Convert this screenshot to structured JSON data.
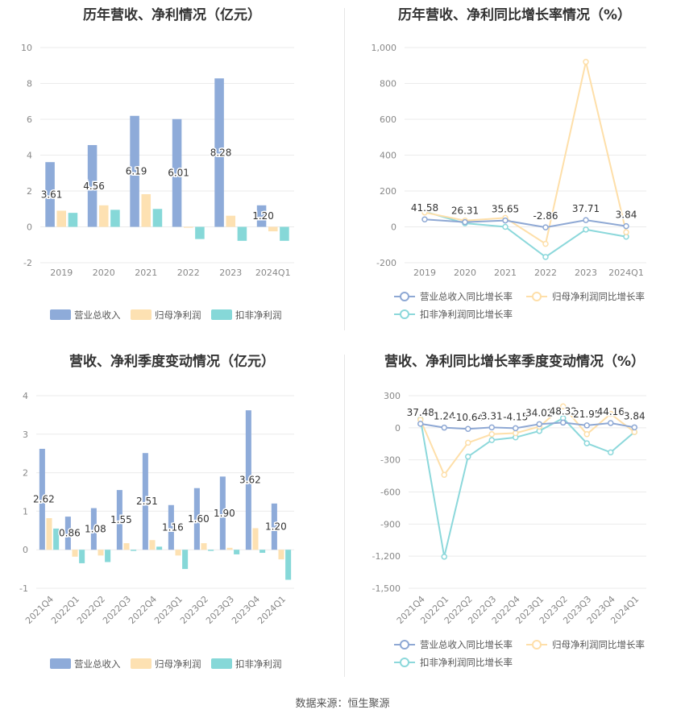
{
  "source": "数据来源：恒生聚源",
  "colors": {
    "revenue": "#8eabd9",
    "netprofit": "#fde1b2",
    "deducted": "#86d8d8",
    "rev_line": "#8ea8d4",
    "np_line": "#fedfa9",
    "dd_line": "#8cd8db"
  },
  "chart_data": [
    {
      "type": "bar",
      "title": "历年营收、净利情况（亿元）",
      "categories": [
        "2019",
        "2020",
        "2021",
        "2022",
        "2023",
        "2024Q1"
      ],
      "ylim": [
        -2,
        10
      ],
      "yticks": [
        -2,
        0,
        2,
        4,
        6,
        8,
        10
      ],
      "ytick_labels": [
        "-2",
        "0",
        "2",
        "4",
        "6",
        "8",
        "10"
      ],
      "grid": true,
      "legend": "bottom",
      "series": [
        {
          "name": "营业总收入",
          "values": [
            3.61,
            4.56,
            6.19,
            6.01,
            8.28,
            1.2
          ],
          "labels": [
            "3.61",
            "4.56",
            "6.19",
            "6.01",
            "8.28",
            "1.20"
          ]
        },
        {
          "name": "归母净利润",
          "values": [
            0.9,
            1.2,
            1.82,
            -0.05,
            0.62,
            -0.25
          ]
        },
        {
          "name": "扣非净利润",
          "values": [
            0.78,
            0.95,
            1.0,
            -0.68,
            -0.78,
            -0.78
          ]
        }
      ]
    },
    {
      "type": "line",
      "title": "历年营收、净利同比增长率情况（%）",
      "categories": [
        "2019",
        "2020",
        "2021",
        "2022",
        "2023",
        "2024Q1"
      ],
      "ylim": [
        -200,
        1000
      ],
      "yticks": [
        -200,
        0,
        200,
        400,
        600,
        800,
        1000
      ],
      "ytick_labels": [
        "-200",
        "0",
        "200",
        "400",
        "600",
        "800",
        "1,000"
      ],
      "grid": true,
      "legend": "bottom",
      "series": [
        {
          "name": "营业总收入同比增长率",
          "values": [
            41.58,
            26.31,
            35.65,
            -2.86,
            37.71,
            3.84
          ],
          "labels": [
            "41.58",
            "26.31",
            "35.65",
            "-2.86",
            "37.71",
            "3.84"
          ]
        },
        {
          "name": "归母净利润同比增长率",
          "values": [
            80,
            35,
            50,
            -95,
            920,
            -30
          ]
        },
        {
          "name": "扣非净利润同比增长率",
          "values": [
            85,
            20,
            0,
            -168,
            -15,
            -55
          ]
        }
      ]
    },
    {
      "type": "bar",
      "title": "营收、净利季度变动情况（亿元）",
      "categories": [
        "2021Q4",
        "2022Q1",
        "2022Q2",
        "2022Q3",
        "2022Q4",
        "2023Q1",
        "2023Q2",
        "2023Q3",
        "2023Q4",
        "2024Q1"
      ],
      "ylim": [
        -1,
        4
      ],
      "yticks": [
        -1,
        0,
        1,
        2,
        3,
        4
      ],
      "ytick_labels": [
        "-1",
        "0",
        "1",
        "2",
        "3",
        "4"
      ],
      "grid": true,
      "legend": "bottom",
      "series": [
        {
          "name": "营业总收入",
          "values": [
            2.62,
            0.86,
            1.08,
            1.55,
            2.51,
            1.16,
            1.6,
            1.9,
            3.62,
            1.2
          ],
          "labels": [
            "2.62",
            "0.86",
            "1.08",
            "1.55",
            "2.51",
            "1.16",
            "1.60",
            "1.90",
            "3.62",
            "1.20"
          ]
        },
        {
          "name": "归母净利润",
          "values": [
            0.82,
            -0.18,
            -0.15,
            0.17,
            0.25,
            -0.15,
            0.17,
            0.05,
            0.56,
            -0.25
          ]
        },
        {
          "name": "扣非净利润",
          "values": [
            0.55,
            -0.35,
            -0.32,
            -0.03,
            0.08,
            -0.5,
            -0.03,
            -0.12,
            -0.08,
            -0.78
          ]
        }
      ]
    },
    {
      "type": "line",
      "title": "营收、净利同比增长率季度变动情况（%）",
      "categories": [
        "2021Q4",
        "2022Q1",
        "2022Q2",
        "2022Q3",
        "2022Q4",
        "2023Q1",
        "2023Q2",
        "2023Q3",
        "2023Q4",
        "2024Q1"
      ],
      "ylim": [
        -1500,
        300
      ],
      "yticks": [
        -1500,
        -1200,
        -900,
        -600,
        -300,
        0,
        300
      ],
      "ytick_labels": [
        "-1,500",
        "-1,200",
        "-900",
        "-600",
        "-300",
        "0",
        "300"
      ],
      "grid": true,
      "legend": "bottom",
      "series": [
        {
          "name": "营业总收入同比增长率",
          "values": [
            37.48,
            1.24,
            -10.64,
            3.31,
            -4.15,
            34.02,
            48.32,
            21.95,
            44.16,
            3.84
          ],
          "labels": [
            "37.48",
            "1.24",
            "-10.64",
            "3.31",
            "-4.15",
            "34.02",
            "48.32",
            "21.95",
            "44.16",
            "3.84"
          ]
        },
        {
          "name": "归母净利润同比增长率",
          "values": [
            75,
            -440,
            -140,
            -60,
            -50,
            10,
            200,
            -60,
            130,
            -40
          ]
        },
        {
          "name": "扣非净利润同比增长率",
          "values": [
            80,
            -1205,
            -270,
            -115,
            -90,
            -30,
            90,
            -145,
            -230,
            -40
          ]
        }
      ]
    }
  ]
}
